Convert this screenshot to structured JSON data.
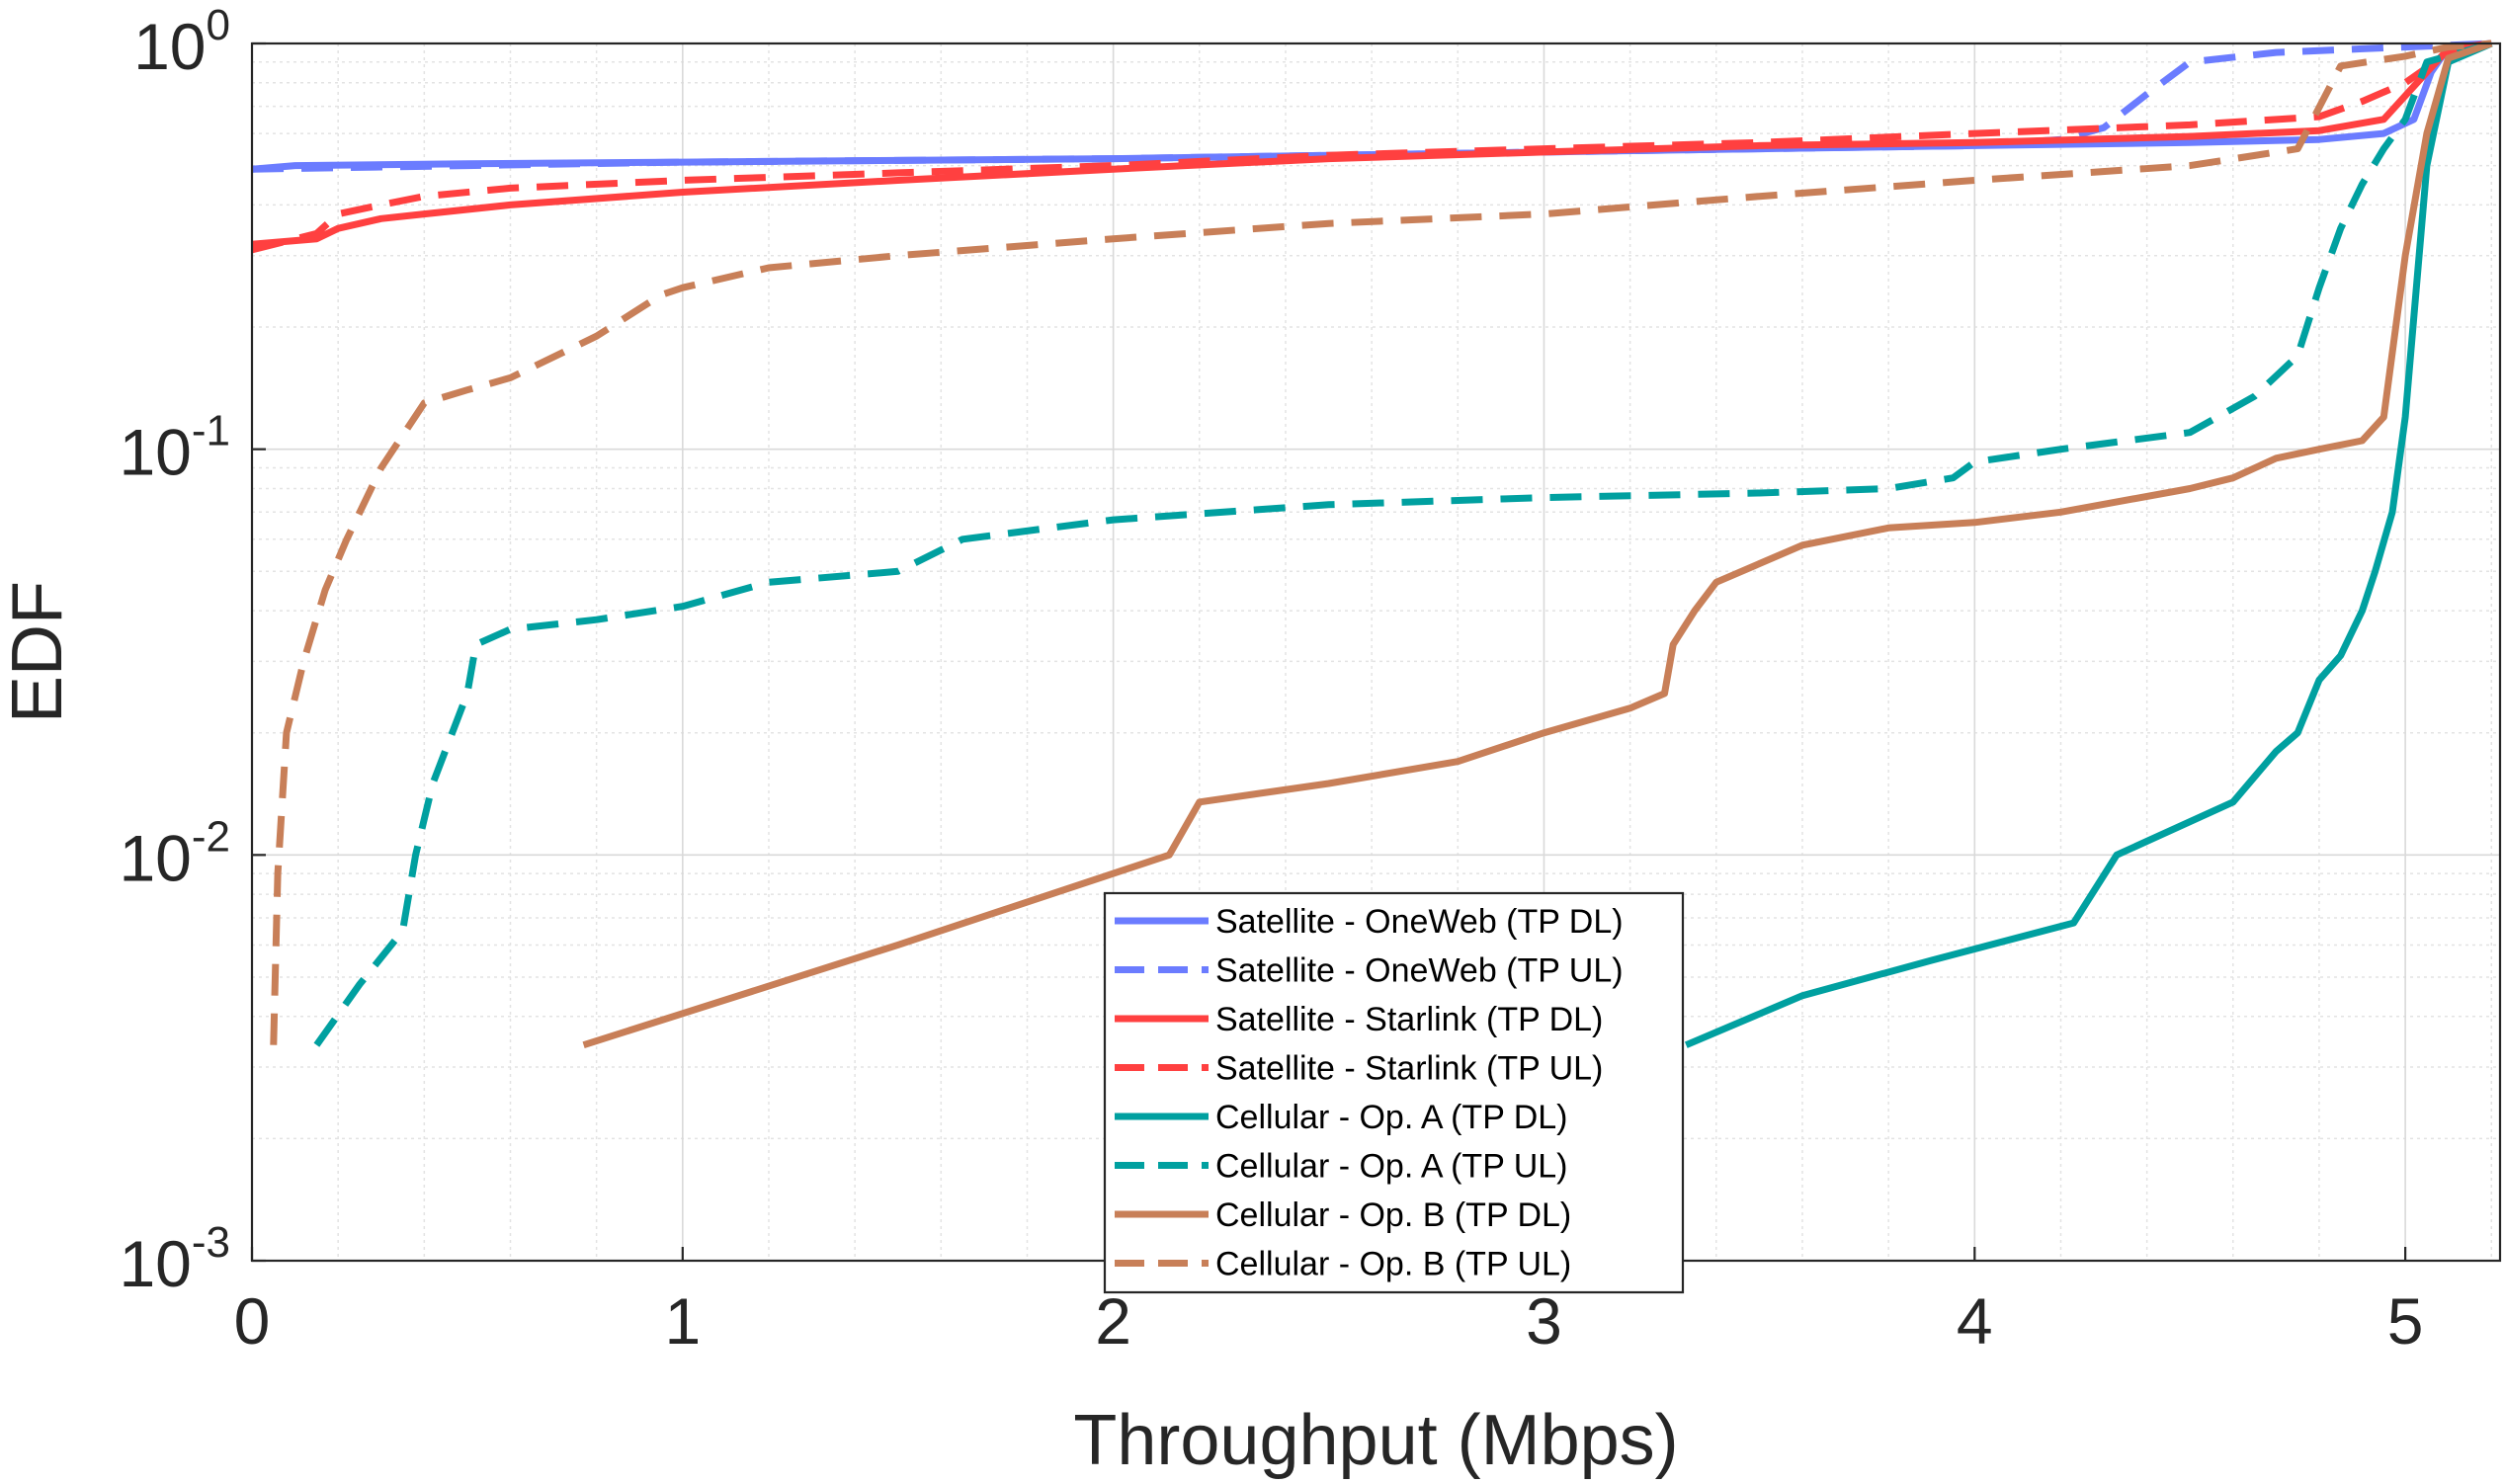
{
  "chart_data": {
    "type": "line",
    "title": "",
    "xlabel": "Throughput (Mbps)",
    "ylabel": "EDF",
    "xlim": [
      0,
      5.22
    ],
    "ylim": [
      0.001,
      1
    ],
    "yscale": "log",
    "grid": true,
    "legend_position": "bottom-center",
    "x_ticks": [
      {
        "value": 0,
        "label": "0"
      },
      {
        "value": 1,
        "label": "1"
      },
      {
        "value": 2,
        "label": "2"
      },
      {
        "value": 3,
        "label": "3"
      },
      {
        "value": 4,
        "label": "4"
      },
      {
        "value": 5,
        "label": "5"
      }
    ],
    "y_ticks": [
      {
        "value": 1,
        "base": "10",
        "exp": "0"
      },
      {
        "value": 0.1,
        "base": "10",
        "exp": "-1"
      },
      {
        "value": 0.01,
        "base": "10",
        "exp": "-2"
      },
      {
        "value": 0.001,
        "base": "10",
        "exp": "-3"
      }
    ],
    "series": [
      {
        "name": "Satellite - OneWeb (TP DL)",
        "color": "#6b7cff",
        "dash": false,
        "x": [
          0,
          0.1,
          0.5,
          1.0,
          1.5,
          2.0,
          2.5,
          3.0,
          3.5,
          4.0,
          4.5,
          4.8,
          4.95,
          5.02,
          5.06,
          5.1,
          5.2
        ],
        "y": [
          0.49,
          0.5,
          0.505,
          0.51,
          0.515,
          0.52,
          0.53,
          0.54,
          0.55,
          0.56,
          0.57,
          0.58,
          0.6,
          0.65,
          0.85,
          0.98,
          1.0
        ]
      },
      {
        "name": "Satellite - OneWeb (TP UL)",
        "color": "#6b7cff",
        "dash": true,
        "x": [
          0,
          0.5,
          1.0,
          2.0,
          3.0,
          4.0,
          4.2,
          4.3,
          4.4,
          4.5,
          4.7,
          4.9,
          5.0,
          5.2
        ],
        "y": [
          0.49,
          0.5,
          0.51,
          0.52,
          0.54,
          0.56,
          0.58,
          0.62,
          0.75,
          0.9,
          0.95,
          0.97,
          0.98,
          1.0
        ]
      },
      {
        "name": "Satellite - Starlink (TP DL)",
        "color": "#ff4040",
        "dash": false,
        "x": [
          0,
          0.15,
          0.2,
          0.3,
          0.4,
          0.6,
          1.0,
          1.5,
          2.0,
          2.5,
          3.0,
          3.5,
          4.0,
          4.5,
          4.8,
          4.95,
          5.05,
          5.1,
          5.2
        ],
        "y": [
          0.32,
          0.33,
          0.35,
          0.37,
          0.38,
          0.4,
          0.43,
          0.46,
          0.49,
          0.52,
          0.54,
          0.56,
          0.57,
          0.59,
          0.61,
          0.65,
          0.85,
          0.97,
          1.0
        ]
      },
      {
        "name": "Satellite - Starlink (TP UL)",
        "color": "#ff4040",
        "dash": true,
        "x": [
          0,
          0.15,
          0.2,
          0.3,
          0.4,
          0.6,
          1.0,
          1.5,
          2.0,
          2.5,
          3.0,
          3.5,
          4.0,
          4.5,
          4.8,
          4.9,
          5.0,
          5.1,
          5.2
        ],
        "y": [
          0.31,
          0.34,
          0.38,
          0.4,
          0.42,
          0.44,
          0.46,
          0.48,
          0.5,
          0.53,
          0.55,
          0.57,
          0.6,
          0.63,
          0.66,
          0.72,
          0.8,
          0.95,
          1.0
        ]
      },
      {
        "name": "Cellular - Op. A (TP DL)",
        "color": "#00a0a0",
        "dash": false,
        "x": [
          3.33,
          3.6,
          3.9,
          4.23,
          4.33,
          4.6,
          4.7,
          4.75,
          4.8,
          4.85,
          4.9,
          4.93,
          4.97,
          5.0,
          5.05,
          5.1,
          5.2
        ],
        "y": [
          0.0034,
          0.0045,
          0.0055,
          0.0068,
          0.01,
          0.0135,
          0.018,
          0.02,
          0.027,
          0.031,
          0.04,
          0.05,
          0.07,
          0.12,
          0.5,
          0.9,
          1.0
        ]
      },
      {
        "name": "Cellular - Op. A (TP UL)",
        "color": "#00a0a0",
        "dash": true,
        "x": [
          0.15,
          0.25,
          0.35,
          0.38,
          0.42,
          0.5,
          0.52,
          0.6,
          0.8,
          1.0,
          1.2,
          1.5,
          1.65,
          2.0,
          2.5,
          3.0,
          3.5,
          3.8,
          3.95,
          4.0,
          4.2,
          4.5,
          4.65,
          4.75,
          4.8,
          4.85,
          4.9,
          4.95,
          5.0,
          5.05,
          5.2
        ],
        "y": [
          0.0034,
          0.0048,
          0.0065,
          0.01,
          0.015,
          0.025,
          0.033,
          0.036,
          0.038,
          0.041,
          0.047,
          0.05,
          0.06,
          0.067,
          0.073,
          0.076,
          0.078,
          0.08,
          0.085,
          0.093,
          0.1,
          0.11,
          0.135,
          0.17,
          0.25,
          0.35,
          0.45,
          0.55,
          0.65,
          0.9,
          1.0
        ]
      },
      {
        "name": "Cellular - Op. B (TP DL)",
        "color": "#c87f58",
        "dash": false,
        "x": [
          0.77,
          1.5,
          2.13,
          2.2,
          2.5,
          2.8,
          3.0,
          3.2,
          3.28,
          3.3,
          3.35,
          3.4,
          3.6,
          3.8,
          4.0,
          4.2,
          4.5,
          4.6,
          4.7,
          4.8,
          4.9,
          4.95,
          5.0,
          5.05,
          5.1,
          5.2
        ],
        "y": [
          0.0034,
          0.006,
          0.01,
          0.0135,
          0.015,
          0.017,
          0.02,
          0.023,
          0.025,
          0.033,
          0.04,
          0.047,
          0.058,
          0.064,
          0.066,
          0.07,
          0.08,
          0.085,
          0.095,
          0.1,
          0.105,
          0.12,
          0.3,
          0.6,
          0.92,
          1.0
        ]
      },
      {
        "name": "Cellular - Op. B (TP UL)",
        "color": "#c87f58",
        "dash": true,
        "x": [
          0.05,
          0.06,
          0.08,
          0.12,
          0.17,
          0.22,
          0.3,
          0.4,
          0.5,
          0.6,
          0.8,
          0.95,
          1.0,
          1.2,
          1.5,
          2.0,
          2.5,
          3.0,
          3.5,
          4.0,
          4.5,
          4.75,
          4.85,
          5.0,
          5.1,
          5.2
        ],
        "y": [
          0.0034,
          0.009,
          0.02,
          0.03,
          0.045,
          0.06,
          0.09,
          0.13,
          0.14,
          0.15,
          0.19,
          0.24,
          0.25,
          0.28,
          0.3,
          0.33,
          0.36,
          0.38,
          0.42,
          0.46,
          0.5,
          0.55,
          0.88,
          0.93,
          0.98,
          1.0
        ]
      }
    ]
  }
}
